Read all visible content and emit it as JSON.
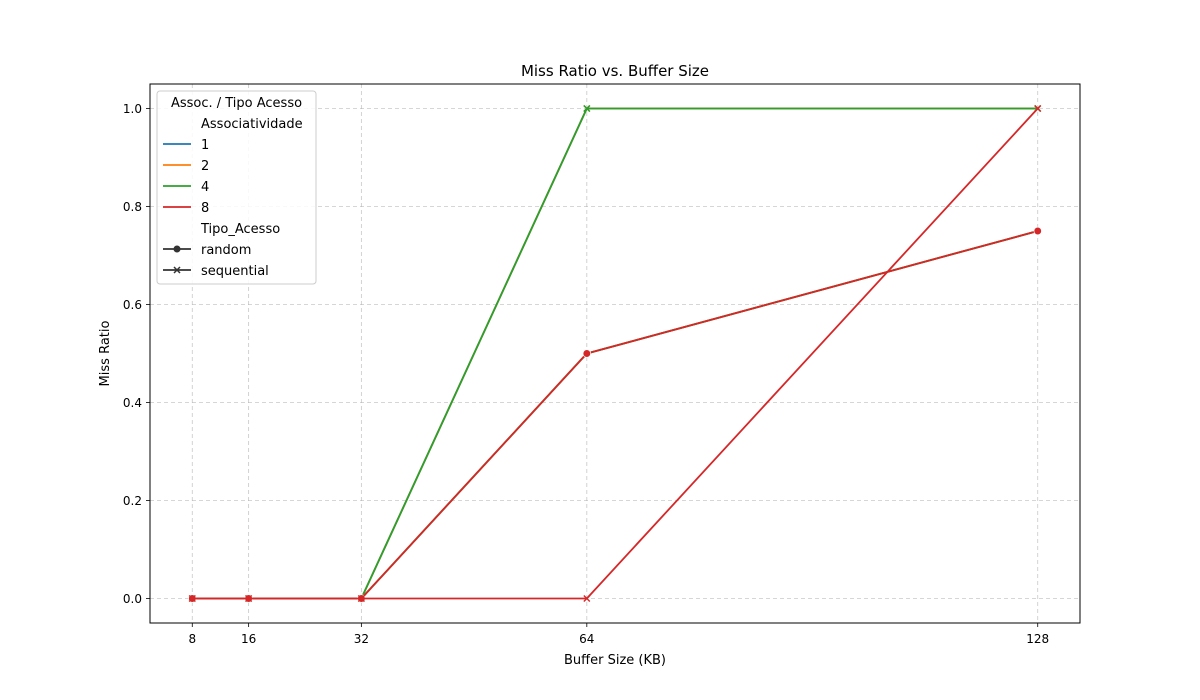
{
  "chart_data": {
    "type": "line",
    "title": "Miss Ratio vs. Buffer Size",
    "xlabel": "Buffer Size (KB)",
    "ylabel": "Miss Ratio",
    "x": [
      8,
      16,
      32,
      64,
      128
    ],
    "xticks": [
      "8",
      "16",
      "32",
      "64",
      "128"
    ],
    "xlim": [
      2.0,
      134.0
    ],
    "ylim": [
      -0.05,
      1.05
    ],
    "yticks": [
      "0.0",
      "0.2",
      "0.4",
      "0.6",
      "0.8",
      "1.0"
    ],
    "ytick_values": [
      0.0,
      0.2,
      0.4,
      0.6,
      0.8,
      1.0
    ],
    "grid": true,
    "legend_placement": "top-left",
    "series": [
      {
        "assoc": "1",
        "access": "random",
        "color": "#1f77b4",
        "marker": "circle",
        "x": [
          8,
          16,
          32,
          64,
          128
        ],
        "y": [
          0,
          0,
          0,
          0.5,
          0.75
        ]
      },
      {
        "assoc": "1",
        "access": "sequential",
        "color": "#1f77b4",
        "marker": "x",
        "x": [
          8,
          16,
          32,
          64,
          128
        ],
        "y": [
          0,
          0,
          0,
          1.0,
          1.0
        ]
      },
      {
        "assoc": "2",
        "access": "random",
        "color": "#ff7f0e",
        "marker": "circle",
        "x": [
          8,
          16,
          32,
          64,
          128
        ],
        "y": [
          0,
          0,
          0,
          0.5,
          0.75
        ]
      },
      {
        "assoc": "2",
        "access": "sequential",
        "color": "#ff7f0e",
        "marker": "x",
        "x": [
          8,
          16,
          32,
          64,
          128
        ],
        "y": [
          0,
          0,
          0,
          1.0,
          1.0
        ]
      },
      {
        "assoc": "4",
        "access": "random",
        "color": "#2ca02c",
        "marker": "circle",
        "x": [
          8,
          16,
          32,
          64,
          128
        ],
        "y": [
          0,
          0,
          0,
          0.5,
          0.75
        ]
      },
      {
        "assoc": "4",
        "access": "sequential",
        "color": "#2ca02c",
        "marker": "x",
        "x": [
          8,
          16,
          32,
          64,
          128
        ],
        "y": [
          0,
          0,
          0,
          1.0,
          1.0
        ]
      },
      {
        "assoc": "8",
        "access": "random",
        "color": "#d62728",
        "marker": "circle",
        "x": [
          8,
          16,
          32,
          64,
          128
        ],
        "y": [
          0,
          0,
          0,
          0.5,
          0.75
        ]
      },
      {
        "assoc": "8",
        "access": "sequential",
        "color": "#d62728",
        "marker": "x",
        "x": [
          8,
          16,
          32,
          64,
          128
        ],
        "y": [
          0,
          0,
          0,
          0,
          1.0
        ]
      }
    ],
    "legend": {
      "title": "Assoc. / Tipo Acesso",
      "hue_title": "Associatividade",
      "hue_entries": [
        {
          "label": "1",
          "color": "#1f77b4"
        },
        {
          "label": "2",
          "color": "#ff7f0e"
        },
        {
          "label": "4",
          "color": "#2ca02c"
        },
        {
          "label": "8",
          "color": "#d62728"
        }
      ],
      "style_title": "Tipo_Acesso",
      "style_entries": [
        {
          "label": "random",
          "marker": "circle"
        },
        {
          "label": "sequential",
          "marker": "x"
        }
      ]
    }
  }
}
